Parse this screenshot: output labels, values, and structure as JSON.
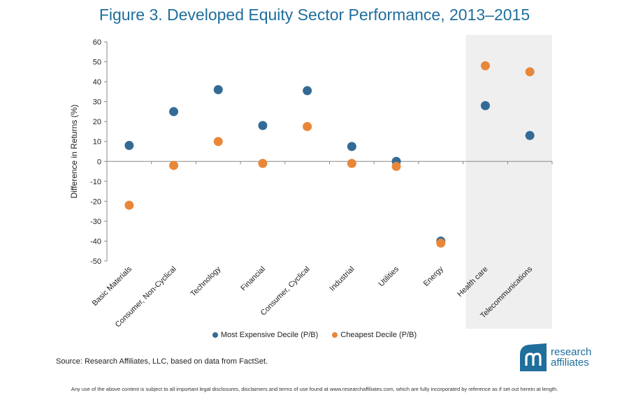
{
  "title": "Figure 3. Developed Equity Sector Performance, 2013–2015",
  "source": "Source: Research Affiliates, LLC, based on data from FactSet.",
  "disclaimer": "Any use of the above content is subject to all important legal disclosures, disclaimers and terms of use found at www.researchaffiliates.com, which are fully incorporated by reference as if set out herein at length.",
  "logo": {
    "line1": "research",
    "line2": "affiliates"
  },
  "colors": {
    "expensive": "#336b96",
    "cheapest": "#e8873a",
    "shade": "#efefef",
    "title": "#1f6e9c"
  },
  "chart_data": {
    "type": "scatter",
    "title": "Figure 3. Developed Equity Sector Performance, 2013–2015",
    "xlabel": "",
    "ylabel": "Difference in Returns (%)",
    "ylim": [
      -50,
      60
    ],
    "yticks": [
      60,
      50,
      40,
      30,
      20,
      10,
      0,
      -10,
      -20,
      -30,
      -40,
      -50
    ],
    "grid": false,
    "legend_position": "bottom",
    "shaded_categories": [
      "Health care",
      "Telecommunications"
    ],
    "categories": [
      "Basic Materials",
      "Consumer, Non-Cyclical",
      "Technology",
      "Financial",
      "Consumer, Cyclical",
      "Industrial",
      "Utilities",
      "Energy",
      "Health care",
      "Telecommunications"
    ],
    "series": [
      {
        "name": "Most Expensive Decile (P/B)",
        "color": "#336b96",
        "values": [
          8,
          25,
          36,
          18,
          35.5,
          7.5,
          0,
          -40,
          28,
          13
        ]
      },
      {
        "name": "Cheapest Decile (P/B)",
        "color": "#e8873a",
        "values": [
          -22,
          -2,
          10,
          -1,
          17.5,
          -1,
          -2.5,
          -41,
          48,
          45
        ]
      }
    ]
  }
}
